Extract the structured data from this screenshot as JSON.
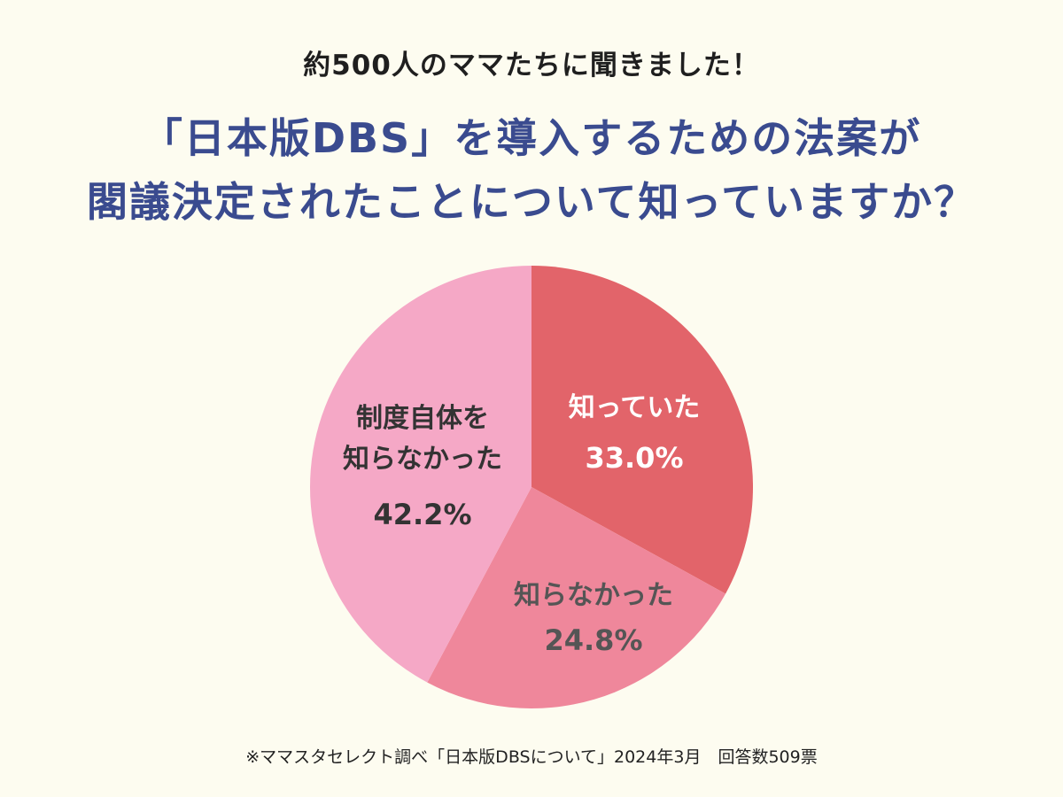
{
  "header": {
    "subtitle": "約500人のママたちに聞きました！",
    "title_line1": "「日本版DBS」を導入するための法案が",
    "title_line2": "閣議決定されたことについて知っていますか？"
  },
  "footnote": "※ママスタセレクト調べ「日本版DBSについて」2024年3月　回答数509票",
  "chart_data": {
    "type": "pie",
    "title": "",
    "slices": [
      {
        "label_lines": [
          "知っていた"
        ],
        "value": 33.0,
        "display": "33.0%",
        "color": "#e2646a",
        "text_color": "#ffffff"
      },
      {
        "label_lines": [
          "知らなかった"
        ],
        "value": 24.8,
        "display": "24.8%",
        "color": "#ef879b",
        "text_color": "#555555"
      },
      {
        "label_lines": [
          "制度自体を",
          "知らなかった"
        ],
        "value": 42.2,
        "display": "42.2%",
        "color": "#f5a8c6",
        "text_color": "#333333"
      }
    ]
  }
}
